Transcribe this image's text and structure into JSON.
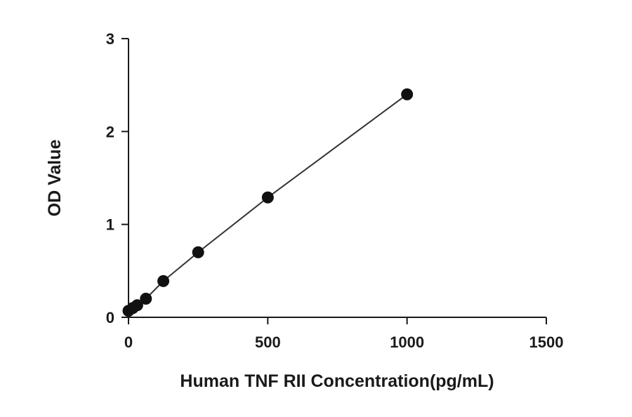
{
  "chart_data": {
    "type": "scatter",
    "title": "",
    "xlabel": "Human TNF RII Concentration(pg/mL)",
    "ylabel": "OD Value",
    "xlim": [
      0,
      1500
    ],
    "ylim": [
      0,
      3
    ],
    "xticks": [
      0,
      500,
      1000,
      1500
    ],
    "yticks": [
      0,
      1,
      2,
      3
    ],
    "xtick_labels": [
      "0",
      "500",
      "1000",
      "1500"
    ],
    "ytick_labels": [
      "0",
      "1",
      "2",
      "3"
    ],
    "grid": false,
    "legend": "none",
    "series": [
      {
        "points": [
          {
            "x": 0,
            "y": 0.07
          },
          {
            "x": 15.6,
            "y": 0.1
          },
          {
            "x": 31.25,
            "y": 0.13
          },
          {
            "x": 62.5,
            "y": 0.2
          },
          {
            "x": 125,
            "y": 0.39
          },
          {
            "x": 250,
            "y": 0.7
          },
          {
            "x": 500,
            "y": 1.29
          },
          {
            "x": 1000,
            "y": 2.4
          }
        ],
        "color": "#111111",
        "fit_line": true
      }
    ]
  }
}
